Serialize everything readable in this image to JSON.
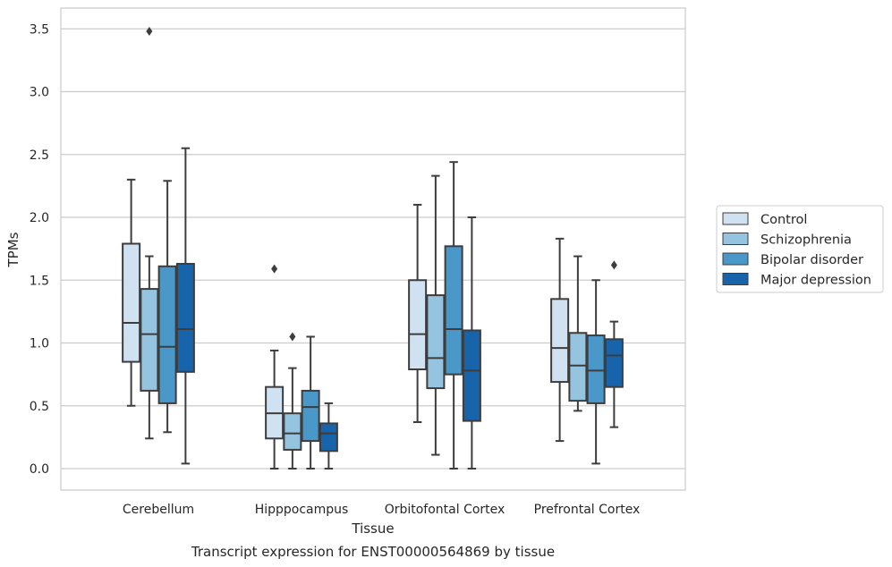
{
  "chart_data": {
    "type": "box",
    "title": "",
    "caption": "Transcript expression for ENST00000564869 by tissue",
    "xlabel": "Tissue",
    "ylabel": "TPMs",
    "ylim": [
      -0.16,
      3.65
    ],
    "yticks": [
      "0.0",
      "0.5",
      "1.0",
      "1.5",
      "2.0",
      "2.5",
      "3.0",
      "3.5"
    ],
    "grid": "horizontal",
    "legend_position": "right",
    "categories": [
      "Cerebellum",
      "Hipppocampus",
      "Orbitofontal Cortex",
      "Prefrontal Cortex"
    ],
    "series": [
      {
        "name": "Control",
        "color": "#d0e1f2",
        "boxes": [
          {
            "whislo": 0.5,
            "q1": 0.85,
            "med": 1.16,
            "q3": 1.79,
            "whishi": 2.3,
            "fliers": []
          },
          {
            "whislo": 0.0,
            "q1": 0.24,
            "med": 0.44,
            "q3": 0.65,
            "whishi": 0.94,
            "fliers": [
              1.59
            ]
          },
          {
            "whislo": 0.37,
            "q1": 0.79,
            "med": 1.07,
            "q3": 1.5,
            "whishi": 2.1,
            "fliers": []
          },
          {
            "whislo": 0.22,
            "q1": 0.69,
            "med": 0.96,
            "q3": 1.35,
            "whishi": 1.83,
            "fliers": []
          }
        ]
      },
      {
        "name": "Schizophrenia",
        "color": "#94c4df",
        "boxes": [
          {
            "whislo": 0.24,
            "q1": 0.62,
            "med": 1.07,
            "q3": 1.43,
            "whishi": 1.69,
            "fliers": [
              3.48
            ]
          },
          {
            "whislo": 0.0,
            "q1": 0.15,
            "med": 0.28,
            "q3": 0.44,
            "whishi": 0.8,
            "fliers": [
              1.05
            ]
          },
          {
            "whislo": 0.11,
            "q1": 0.64,
            "med": 0.88,
            "q3": 1.38,
            "whishi": 2.33,
            "fliers": []
          },
          {
            "whislo": 0.46,
            "q1": 0.54,
            "med": 0.82,
            "q3": 1.08,
            "whishi": 1.69,
            "fliers": []
          }
        ]
      },
      {
        "name": "Bipolar disorder",
        "color": "#4a98c9",
        "boxes": [
          {
            "whislo": 0.29,
            "q1": 0.52,
            "med": 0.97,
            "q3": 1.61,
            "whishi": 2.29,
            "fliers": []
          },
          {
            "whislo": 0.0,
            "q1": 0.22,
            "med": 0.49,
            "q3": 0.62,
            "whishi": 1.05,
            "fliers": []
          },
          {
            "whislo": 0.0,
            "q1": 0.75,
            "med": 1.11,
            "q3": 1.77,
            "whishi": 2.44,
            "fliers": []
          },
          {
            "whislo": 0.04,
            "q1": 0.52,
            "med": 0.78,
            "q3": 1.06,
            "whishi": 1.5,
            "fliers": []
          }
        ]
      },
      {
        "name": "Major depression",
        "color": "#1764ab",
        "boxes": [
          {
            "whislo": 0.04,
            "q1": 0.77,
            "med": 1.11,
            "q3": 1.63,
            "whishi": 2.55,
            "fliers": []
          },
          {
            "whislo": 0.0,
            "q1": 0.14,
            "med": 0.28,
            "q3": 0.36,
            "whishi": 0.52,
            "fliers": []
          },
          {
            "whislo": 0.0,
            "q1": 0.38,
            "med": 0.78,
            "q3": 1.1,
            "whishi": 2.0,
            "fliers": []
          },
          {
            "whislo": 0.33,
            "q1": 0.65,
            "med": 0.9,
            "q3": 1.03,
            "whishi": 1.17,
            "fliers": [
              1.62
            ]
          }
        ]
      }
    ]
  }
}
